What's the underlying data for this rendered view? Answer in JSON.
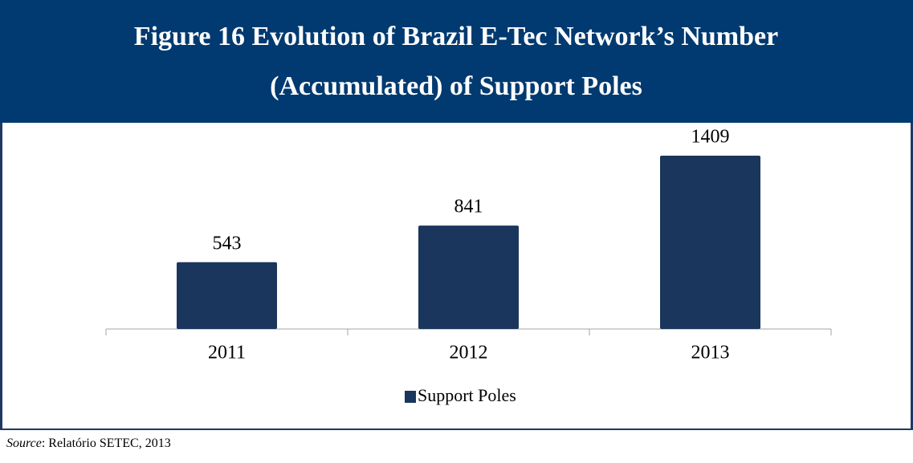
{
  "chart_data": {
    "type": "bar",
    "title": [
      "Figure 16 Evolution of Brazil E-Tec Network’s Number",
      "(Accumulated) of Support Poles"
    ],
    "categories": [
      "2011",
      "2012",
      "2013"
    ],
    "series": [
      {
        "name": "Support Poles",
        "color": "#1b365d",
        "values": [
          543,
          841,
          1409
        ]
      }
    ],
    "legend": "bottom",
    "source_label": "Source",
    "source_text": ": Relatório SETEC, 2013"
  }
}
